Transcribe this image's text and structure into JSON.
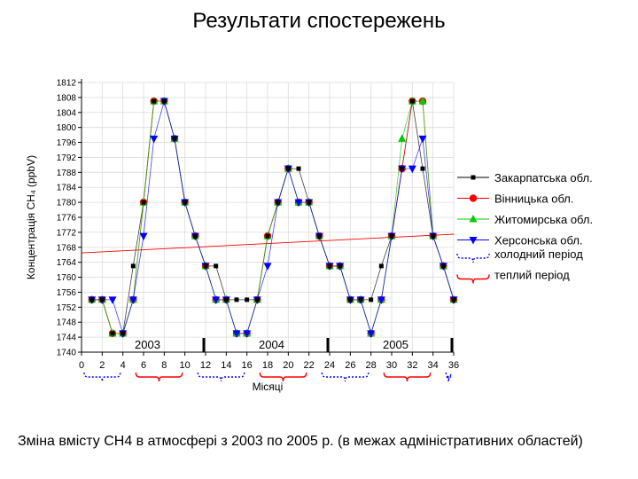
{
  "slide": {
    "title": "Результати спостережень",
    "caption": "Зміна вмісту СН4 в атмосфері з 2003 по 2005 р. (в межах адміністративних областей)"
  },
  "chart_data": {
    "type": "line",
    "xlabel": "Місяці",
    "ylabel": "Концентрація СН₄ (ppbV)",
    "xlim": [
      0,
      36
    ],
    "ylim": [
      1740,
      1812
    ],
    "x_ticks": [
      0,
      2,
      4,
      6,
      8,
      10,
      12,
      14,
      16,
      18,
      20,
      22,
      24,
      26,
      28,
      30,
      32,
      34,
      36
    ],
    "y_ticks": [
      1740,
      1744,
      1748,
      1752,
      1756,
      1760,
      1764,
      1768,
      1772,
      1776,
      1780,
      1784,
      1788,
      1792,
      1796,
      1800,
      1804,
      1808,
      1812
    ],
    "x": [
      1,
      2,
      3,
      4,
      5,
      6,
      7,
      8,
      9,
      10,
      11,
      12,
      13,
      14,
      15,
      16,
      17,
      18,
      19,
      20,
      21,
      22,
      23,
      24,
      25,
      26,
      27,
      28,
      29,
      30,
      31,
      32,
      33,
      34,
      35,
      36
    ],
    "series": [
      {
        "name": "Закарпатська обл.",
        "color": "#000000",
        "marker": "square",
        "values": [
          1754,
          1754,
          1745,
          1745,
          1763,
          1780,
          1807,
          1807,
          1797,
          1780,
          1771,
          1763,
          1763,
          1754,
          1754,
          1754,
          1754,
          1771,
          1780,
          1789,
          1789,
          1780,
          1771,
          1763,
          1763,
          1754,
          1754,
          1754,
          1763,
          1771,
          1789,
          1807,
          1789,
          1771,
          1763,
          1754
        ]
      },
      {
        "name": "Вінницька обл.",
        "color": "#ff0000",
        "marker": "circle",
        "values": [
          1754,
          1754,
          1745,
          1745,
          1754,
          1780,
          1807,
          1807,
          1797,
          1780,
          1771,
          1763,
          1754,
          1754,
          1745,
          1745,
          1754,
          1771,
          1780,
          1789,
          1780,
          1780,
          1771,
          1763,
          1763,
          1754,
          1754,
          1745,
          1754,
          1771,
          1789,
          1807,
          1807,
          1771,
          1763,
          1754
        ]
      },
      {
        "name": "Житомирська обл.",
        "color": "#00cc00",
        "marker": "triangle-up",
        "values": [
          1754,
          1754,
          1745,
          1745,
          1754,
          1780,
          1807,
          1807,
          1797,
          1780,
          1771,
          1763,
          1754,
          1754,
          1745,
          1745,
          1754,
          1771,
          1780,
          1789,
          1780,
          1780,
          1771,
          1763,
          1763,
          1754,
          1754,
          1745,
          1754,
          1771,
          1797,
          1807,
          1807,
          1771,
          1763,
          1754
        ]
      },
      {
        "name": "Херсонська обл.",
        "color": "#0000ff",
        "marker": "triangle-down",
        "values": [
          1754,
          1754,
          1754,
          1745,
          1754,
          1771,
          1797,
          1807,
          1797,
          1780,
          1771,
          1763,
          1754,
          1754,
          1745,
          1745,
          1754,
          1763,
          1780,
          1789,
          1780,
          1780,
          1771,
          1763,
          1763,
          1754,
          1754,
          1745,
          1754,
          1771,
          1789,
          1789,
          1797,
          1771,
          1763,
          1754
        ]
      }
    ],
    "trend_line": {
      "color": "#ff0000",
      "from": [
        0,
        1766.5
      ],
      "to": [
        36,
        1771.5
      ]
    },
    "year_labels": [
      {
        "label": "2003",
        "x": 6
      },
      {
        "label": "2004",
        "x": 18
      },
      {
        "label": "2005",
        "x": 30
      }
    ],
    "year_dividers": [
      12,
      24,
      36
    ],
    "periods": [
      {
        "type": "cold",
        "from": 0,
        "to": 4
      },
      {
        "type": "warm",
        "from": 5,
        "to": 10
      },
      {
        "type": "cold",
        "from": 11,
        "to": 16
      },
      {
        "type": "warm",
        "from": 17,
        "to": 22
      },
      {
        "type": "cold",
        "from": 23,
        "to": 28
      },
      {
        "type": "warm",
        "from": 29,
        "to": 34
      },
      {
        "type": "cold",
        "from": 35,
        "to": 36
      }
    ],
    "legend": {
      "placement": "right",
      "period_entries": [
        {
          "label": "холодний період",
          "color": "#0000ff",
          "dashed": true
        },
        {
          "label": "теплий період",
          "color": "#ff0000",
          "dashed": false
        }
      ]
    },
    "grid": true
  }
}
